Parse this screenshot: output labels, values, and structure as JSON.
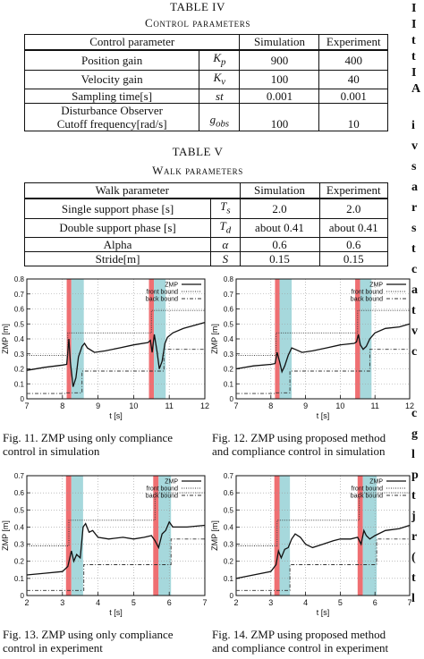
{
  "table4": {
    "number": "TABLE IV",
    "title": "Control parameters",
    "headers": [
      "Control parameter",
      "",
      "Simulation",
      "Experiment"
    ],
    "rows": [
      {
        "name": "Position gain",
        "symbol": "Kp",
        "sim": "900",
        "exp": "400"
      },
      {
        "name": "Velocity gain",
        "symbol": "Kv",
        "sim": "100",
        "exp": "40"
      },
      {
        "name": "Sampling time[s]",
        "symbol": "st",
        "sim": "0.001",
        "exp": "0.001"
      },
      {
        "name": "Disturbance Observer Cutoff frequency[rad/s]",
        "name_line1": "Disturbance Observer",
        "name_line2": "Cutoff frequency[rad/s]",
        "symbol": "gobs",
        "sim": "100",
        "exp": "10"
      }
    ]
  },
  "table5": {
    "number": "TABLE V",
    "title": "Walk parameters",
    "headers": [
      "Walk parameter",
      "",
      "Simulation",
      "Experiment"
    ],
    "rows": [
      {
        "name": "Single support phase [s]",
        "symbol": "Ts",
        "sim": "2.0",
        "exp": "2.0"
      },
      {
        "name": "Double support phase [s]",
        "symbol": "Td",
        "sim": "about 0.41",
        "exp": "about 0.41"
      },
      {
        "name": "Alpha",
        "symbol": "α",
        "sim": "0.6",
        "exp": "0.6"
      },
      {
        "name": "Stride[m]",
        "symbol": "S",
        "sim": "0.15",
        "exp": "0.15"
      }
    ]
  },
  "figures": [
    {
      "caption_line1": "Fig. 11.   ZMP using only compliance",
      "caption_line2": "control in simulation"
    },
    {
      "caption_line1": "Fig. 12.   ZMP using proposed method",
      "caption_line2": "and compliance control in simulation"
    },
    {
      "caption_line1": "Fig. 13.   ZMP using only compliance",
      "caption_line2": "control in experiment"
    },
    {
      "caption_line1": "Fig. 14.   ZMP using proposed method",
      "caption_line2": "and compliance control in experiment"
    }
  ],
  "right_column_fragment": [
    "I",
    "I",
    "t",
    "t",
    "I",
    "A",
    "",
    "i",
    "v",
    "s",
    "a",
    "r",
    "s",
    "t",
    "c",
    "a",
    "t",
    "v",
    "c",
    "",
    "",
    "c",
    "g",
    "l",
    "p",
    "t",
    "j",
    "r",
    "(",
    "t",
    "l"
  ],
  "chart_data": [
    {
      "type": "line",
      "xlabel": "t [s]",
      "ylabel": "ZMP [m]",
      "xlim": [
        7,
        12
      ],
      "ylim": [
        0,
        0.8
      ],
      "xticks": [
        7,
        8,
        9,
        10,
        11,
        12
      ],
      "yticks": [
        0,
        0.1,
        0.2,
        0.3,
        0.4,
        0.5,
        0.6,
        0.7,
        0.8
      ],
      "legend": [
        "ZMP",
        "front bound",
        "back bound"
      ],
      "legend_position": "top-right",
      "grid": true,
      "red_bands": [
        [
          8.12,
          8.25
        ],
        [
          10.43,
          10.57
        ]
      ],
      "cyan_bands": [
        [
          8.25,
          8.6
        ],
        [
          10.57,
          10.9
        ]
      ],
      "series": [
        {
          "name": "ZMP",
          "style": "solid",
          "points": [
            [
              7,
              0.19
            ],
            [
              7.5,
              0.21
            ],
            [
              8,
              0.225
            ],
            [
              8.12,
              0.23
            ],
            [
              8.18,
              0.4
            ],
            [
              8.22,
              0.25
            ],
            [
              8.3,
              0.08
            ],
            [
              8.38,
              0.14
            ],
            [
              8.45,
              0.28
            ],
            [
              8.55,
              0.35
            ],
            [
              8.62,
              0.37
            ],
            [
              8.7,
              0.34
            ],
            [
              8.9,
              0.31
            ],
            [
              9.2,
              0.32
            ],
            [
              9.6,
              0.34
            ],
            [
              10,
              0.36
            ],
            [
              10.4,
              0.375
            ],
            [
              10.47,
              0.39
            ],
            [
              10.52,
              0.31
            ],
            [
              10.58,
              0.43
            ],
            [
              10.66,
              0.31
            ],
            [
              10.72,
              0.2
            ],
            [
              10.8,
              0.25
            ],
            [
              10.88,
              0.37
            ],
            [
              10.95,
              0.41
            ],
            [
              11.1,
              0.44
            ],
            [
              11.4,
              0.47
            ],
            [
              12,
              0.51
            ]
          ]
        },
        {
          "name": "front bound",
          "style": "dotted",
          "points": [
            [
              7,
              0.29
            ],
            [
              8.15,
              0.29
            ],
            [
              8.15,
              0.44
            ],
            [
              10.5,
              0.44
            ],
            [
              10.5,
              0.59
            ],
            [
              12,
              0.59
            ]
          ]
        },
        {
          "name": "back bound",
          "style": "dashdot",
          "points": [
            [
              7,
              0.035
            ],
            [
              8.12,
              0.035
            ],
            [
              8.12,
              0.04
            ],
            [
              8.55,
              0.04
            ],
            [
              8.55,
              0.185
            ],
            [
              10.85,
              0.185
            ],
            [
              10.85,
              0.33
            ],
            [
              12,
              0.33
            ]
          ]
        }
      ]
    },
    {
      "type": "line",
      "xlabel": "t [s]",
      "ylabel": "ZMP [m]",
      "xlim": [
        7,
        12
      ],
      "ylim": [
        0,
        0.8
      ],
      "xticks": [
        7,
        8,
        9,
        10,
        11,
        12
      ],
      "yticks": [
        0,
        0.1,
        0.2,
        0.3,
        0.4,
        0.5,
        0.6,
        0.7,
        0.8
      ],
      "legend": [
        "ZMP",
        "front bound",
        "back bound"
      ],
      "legend_position": "top-right",
      "grid": true,
      "red_bands": [
        [
          8.12,
          8.25
        ],
        [
          10.43,
          10.57
        ]
      ],
      "cyan_bands": [
        [
          8.25,
          8.6
        ],
        [
          10.57,
          10.9
        ]
      ],
      "series": [
        {
          "name": "ZMP",
          "style": "solid",
          "points": [
            [
              7,
              0.2
            ],
            [
              7.5,
              0.22
            ],
            [
              8,
              0.23
            ],
            [
              8.12,
              0.235
            ],
            [
              8.18,
              0.31
            ],
            [
              8.25,
              0.25
            ],
            [
              8.32,
              0.18
            ],
            [
              8.4,
              0.22
            ],
            [
              8.5,
              0.29
            ],
            [
              8.6,
              0.34
            ],
            [
              8.7,
              0.33
            ],
            [
              8.9,
              0.31
            ],
            [
              9.2,
              0.32
            ],
            [
              9.6,
              0.34
            ],
            [
              10,
              0.36
            ],
            [
              10.4,
              0.37
            ],
            [
              10.47,
              0.38
            ],
            [
              10.52,
              0.43
            ],
            [
              10.58,
              0.36
            ],
            [
              10.66,
              0.33
            ],
            [
              10.75,
              0.35
            ],
            [
              10.85,
              0.4
            ],
            [
              11,
              0.44
            ],
            [
              11.3,
              0.47
            ],
            [
              11.7,
              0.48
            ],
            [
              12,
              0.5
            ]
          ]
        },
        {
          "name": "front bound",
          "style": "dotted",
          "points": [
            [
              7,
              0.29
            ],
            [
              8.15,
              0.29
            ],
            [
              8.15,
              0.44
            ],
            [
              10.5,
              0.44
            ],
            [
              10.5,
              0.59
            ],
            [
              12,
              0.59
            ]
          ]
        },
        {
          "name": "back bound",
          "style": "dashdot",
          "points": [
            [
              7,
              0.035
            ],
            [
              8.12,
              0.035
            ],
            [
              8.12,
              0.04
            ],
            [
              8.55,
              0.04
            ],
            [
              8.55,
              0.185
            ],
            [
              10.85,
              0.185
            ],
            [
              10.85,
              0.33
            ],
            [
              12,
              0.33
            ]
          ]
        }
      ]
    },
    {
      "type": "line",
      "xlabel": "t [s]",
      "ylabel": "ZMP [m]",
      "xlim": [
        2,
        7
      ],
      "ylim": [
        0,
        0.7
      ],
      "xticks": [
        2,
        3,
        4,
        5,
        6,
        7
      ],
      "yticks": [
        0,
        0.1,
        0.2,
        0.3,
        0.4,
        0.5,
        0.6,
        0.7
      ],
      "legend": [
        "ZMP",
        "front bound",
        "back bound"
      ],
      "legend_position": "top-right",
      "grid": true,
      "red_bands": [
        [
          3.1,
          3.25
        ],
        [
          5.55,
          5.7
        ]
      ],
      "cyan_bands": [
        [
          3.25,
          3.58
        ],
        [
          5.7,
          6.05
        ]
      ],
      "series": [
        {
          "name": "ZMP",
          "style": "solid",
          "points": [
            [
              2,
              0.12
            ],
            [
              2.5,
              0.13
            ],
            [
              3,
              0.14
            ],
            [
              3.15,
              0.17
            ],
            [
              3.25,
              0.26
            ],
            [
              3.32,
              0.2
            ],
            [
              3.4,
              0.24
            ],
            [
              3.5,
              0.22
            ],
            [
              3.58,
              0.4
            ],
            [
              3.65,
              0.42
            ],
            [
              3.75,
              0.37
            ],
            [
              3.85,
              0.38
            ],
            [
              4,
              0.34
            ],
            [
              4.3,
              0.33
            ],
            [
              4.7,
              0.34
            ],
            [
              5,
              0.33
            ],
            [
              5.3,
              0.34
            ],
            [
              5.5,
              0.35
            ],
            [
              5.6,
              0.32
            ],
            [
              5.7,
              0.28
            ],
            [
              5.8,
              0.36
            ],
            [
              5.9,
              0.38
            ],
            [
              6,
              0.43
            ],
            [
              6.1,
              0.4
            ],
            [
              6.5,
              0.4
            ],
            [
              7,
              0.41
            ]
          ]
        },
        {
          "name": "front bound",
          "style": "dotted",
          "points": [
            [
              2,
              0.29
            ],
            [
              3.18,
              0.29
            ],
            [
              3.18,
              0.44
            ],
            [
              5.6,
              0.44
            ],
            [
              5.6,
              0.6
            ],
            [
              7,
              0.6
            ]
          ]
        },
        {
          "name": "back bound",
          "style": "dashdot",
          "points": [
            [
              2,
              0.03
            ],
            [
              3.6,
              0.03
            ],
            [
              3.6,
              0.18
            ],
            [
              6.05,
              0.18
            ],
            [
              6.05,
              0.33
            ],
            [
              7,
              0.33
            ]
          ]
        }
      ]
    },
    {
      "type": "line",
      "xlabel": "t [s]",
      "ylabel": "ZMP [m]",
      "xlim": [
        2,
        7
      ],
      "ylim": [
        0,
        0.7
      ],
      "xticks": [
        2,
        3,
        4,
        5,
        6,
        7
      ],
      "yticks": [
        0,
        0.1,
        0.2,
        0.3,
        0.4,
        0.5,
        0.6,
        0.7
      ],
      "legend": [
        "ZMP",
        "front bound",
        "back bound"
      ],
      "legend_position": "top-right",
      "grid": true,
      "red_bands": [
        [
          3.1,
          3.25
        ],
        [
          5.5,
          5.65
        ]
      ],
      "cyan_bands": [
        [
          3.25,
          3.55
        ],
        [
          5.65,
          6.05
        ]
      ],
      "series": [
        {
          "name": "ZMP",
          "style": "solid",
          "points": [
            [
              2,
              0.1
            ],
            [
              2.5,
              0.12
            ],
            [
              3,
              0.14
            ],
            [
              3.15,
              0.18
            ],
            [
              3.22,
              0.26
            ],
            [
              3.3,
              0.22
            ],
            [
              3.4,
              0.27
            ],
            [
              3.5,
              0.28
            ],
            [
              3.6,
              0.33
            ],
            [
              3.7,
              0.36
            ],
            [
              3.85,
              0.34
            ],
            [
              4,
              0.3
            ],
            [
              4.2,
              0.28
            ],
            [
              4.5,
              0.3
            ],
            [
              4.8,
              0.32
            ],
            [
              5,
              0.33
            ],
            [
              5.3,
              0.33
            ],
            [
              5.5,
              0.34
            ],
            [
              5.6,
              0.3
            ],
            [
              5.68,
              0.38
            ],
            [
              5.75,
              0.35
            ],
            [
              5.85,
              0.33
            ],
            [
              6,
              0.35
            ],
            [
              6.3,
              0.38
            ],
            [
              6.7,
              0.39
            ],
            [
              7,
              0.41
            ]
          ]
        },
        {
          "name": "front bound",
          "style": "dotted",
          "points": [
            [
              2,
              0.29
            ],
            [
              3.18,
              0.29
            ],
            [
              3.18,
              0.44
            ],
            [
              5.55,
              0.44
            ],
            [
              5.55,
              0.6
            ],
            [
              7,
              0.6
            ]
          ]
        },
        {
          "name": "back bound",
          "style": "dashdot",
          "points": [
            [
              2,
              0.03
            ],
            [
              3.55,
              0.03
            ],
            [
              3.55,
              0.18
            ],
            [
              6.05,
              0.18
            ],
            [
              6.05,
              0.33
            ],
            [
              7,
              0.33
            ]
          ]
        }
      ]
    }
  ]
}
